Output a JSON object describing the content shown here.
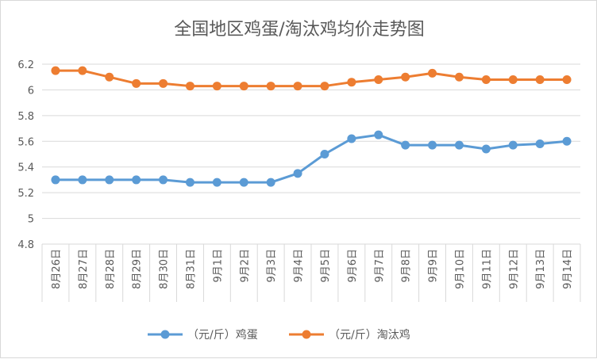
{
  "chart_data": {
    "type": "line",
    "title": "全国地区鸡蛋/淘汰鸡均价走势图",
    "xlabel": "",
    "ylabel": "",
    "categories": [
      "8月26日",
      "8月27日",
      "8月28日",
      "8月29日",
      "8月30日",
      "8月31日",
      "9月1日",
      "9月2日",
      "9月3日",
      "9月4日",
      "9月5日",
      "9月6日",
      "9月7日",
      "9月8日",
      "9月9日",
      "9月10日",
      "9月11日",
      "9月12日",
      "9月13日",
      "9月14日"
    ],
    "series": [
      {
        "name": "（元/斤）鸡蛋",
        "color": "#5b9bd5",
        "values": [
          5.3,
          5.3,
          5.3,
          5.3,
          5.3,
          5.28,
          5.28,
          5.28,
          5.28,
          5.35,
          5.5,
          5.62,
          5.65,
          5.57,
          5.57,
          5.57,
          5.54,
          5.57,
          5.58,
          5.6
        ]
      },
      {
        "name": "（元/斤）淘汰鸡",
        "color": "#ed7d31",
        "values": [
          6.15,
          6.15,
          6.1,
          6.05,
          6.05,
          6.03,
          6.03,
          6.03,
          6.03,
          6.03,
          6.03,
          6.06,
          6.08,
          6.1,
          6.13,
          6.1,
          6.08,
          6.08,
          6.08,
          6.08
        ]
      }
    ],
    "ylim": [
      4.8,
      6.2
    ],
    "yticks": [
      "4.8",
      "5",
      "5.2",
      "5.4",
      "5.6",
      "5.8",
      "6",
      "6.2"
    ],
    "grid": true,
    "legend": "bottom",
    "gridColor": "#d9d9d9"
  }
}
